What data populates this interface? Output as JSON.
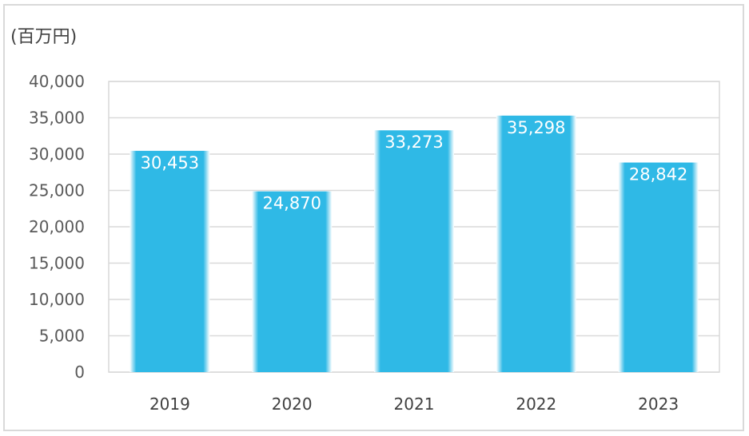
{
  "chart_data": {
    "type": "bar",
    "unit_label": "(百万円)",
    "categories": [
      "2019",
      "2020",
      "2021",
      "2022",
      "2023"
    ],
    "values": [
      30453,
      24870,
      33273,
      35298,
      28842
    ],
    "value_labels": [
      "30,453",
      "24,870",
      "33,273",
      "35,298",
      "28,842"
    ],
    "ylim": [
      0,
      40000
    ],
    "yticks": [
      0,
      5000,
      10000,
      15000,
      20000,
      25000,
      30000,
      35000,
      40000
    ],
    "ytick_labels": [
      "0",
      "5,000",
      "10,000",
      "15,000",
      "20,000",
      "25,000",
      "30,000",
      "35,000",
      "40,000"
    ],
    "grid": true,
    "bar_color": "#2fb9e6",
    "grid_color": "#d9d9d9",
    "frame_color": "#d9d9d9"
  }
}
